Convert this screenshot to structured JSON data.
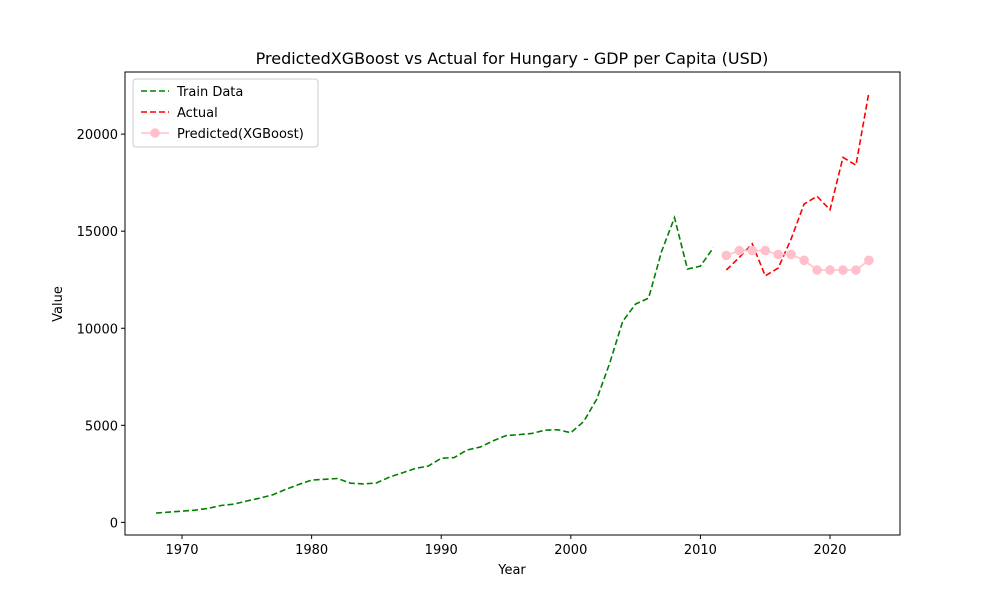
{
  "chart_data": {
    "type": "line",
    "title": "PredictedXGBoost vs Actual for Hungary - GDP per Capita (USD)",
    "xlabel": "Year",
    "ylabel": "Value",
    "xlim": [
      1965.6,
      2025.4
    ],
    "ylim": [
      -650,
      23200
    ],
    "xticks": [
      1970,
      1980,
      1990,
      2000,
      2010,
      2020
    ],
    "yticks": [
      0,
      5000,
      10000,
      15000,
      20000
    ],
    "grid": false,
    "legend_position": "top-left",
    "series": [
      {
        "name": "Train Data",
        "color": "#008000",
        "style": "dashed",
        "marker": "none",
        "x": [
          1968,
          1969,
          1970,
          1971,
          1972,
          1973,
          1974,
          1975,
          1976,
          1977,
          1978,
          1979,
          1980,
          1981,
          1982,
          1983,
          1984,
          1985,
          1986,
          1987,
          1988,
          1989,
          1990,
          1991,
          1992,
          1993,
          1994,
          1995,
          1996,
          1997,
          1998,
          1999,
          2000,
          2001,
          2002,
          2003,
          2004,
          2005,
          2006,
          2007,
          2008,
          2009,
          2010,
          2011
        ],
        "values": [
          480,
          530,
          580,
          630,
          720,
          870,
          940,
          1100,
          1250,
          1420,
          1700,
          1950,
          2180,
          2220,
          2260,
          2020,
          1980,
          2030,
          2330,
          2550,
          2780,
          2900,
          3300,
          3340,
          3730,
          3880,
          4200,
          4470,
          4520,
          4580,
          4750,
          4770,
          4620,
          5200,
          6350,
          8200,
          10350,
          11250,
          11550,
          13950,
          15700,
          13050,
          13200,
          14150
        ]
      },
      {
        "name": "Actual",
        "color": "#ff0000",
        "style": "dashed",
        "marker": "none",
        "x": [
          2012,
          2013,
          2014,
          2015,
          2016,
          2017,
          2018,
          2019,
          2020,
          2021,
          2022,
          2023
        ],
        "values": [
          13000,
          13650,
          14350,
          12700,
          13100,
          14600,
          16400,
          16800,
          16100,
          18800,
          18400,
          22150
        ]
      },
      {
        "name": "Predicted(XGBoost)",
        "color": "#ffc0cb",
        "style": "solid",
        "marker": "circle",
        "x": [
          2012,
          2013,
          2014,
          2015,
          2016,
          2017,
          2018,
          2019,
          2020,
          2021,
          2022,
          2023
        ],
        "values": [
          13750,
          14000,
          14000,
          14000,
          13800,
          13800,
          13500,
          13000,
          13000,
          13000,
          13000,
          13500
        ]
      }
    ]
  }
}
